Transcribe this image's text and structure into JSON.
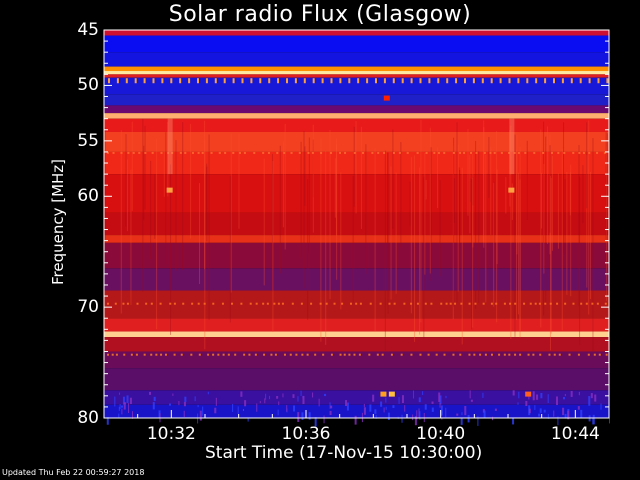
{
  "chart_data": {
    "type": "heatmap",
    "title": "Solar radio Flux (Glasgow)",
    "ylabel": "Frequency [MHz]",
    "xlabel": "Start Time (17-Nov-15 10:30:00)",
    "x_unit": "minutes after 10:30:00",
    "xlim": [
      0,
      15
    ],
    "ylim_mhz": [
      80,
      45
    ],
    "y_ticks": [
      {
        "value": 45,
        "label": "45"
      },
      {
        "value": 50,
        "label": "50"
      },
      {
        "value": 55,
        "label": "55"
      },
      {
        "value": 60,
        "label": "60"
      },
      {
        "value": 70,
        "label": "70"
      },
      {
        "value": 80,
        "label": "80"
      }
    ],
    "x_ticks": [
      {
        "value": 2,
        "label": "10:32"
      },
      {
        "value": 6,
        "label": "10:36"
      },
      {
        "value": 10,
        "label": "10:40"
      },
      {
        "value": 14,
        "label": "10:44"
      }
    ],
    "bands": [
      {
        "from": 45.0,
        "to": 45.5,
        "color": "#d01030"
      },
      {
        "from": 45.5,
        "to": 47.0,
        "color": "#0a0cf2"
      },
      {
        "from": 47.0,
        "to": 48.3,
        "color": "#1414e0"
      },
      {
        "from": 48.3,
        "to": 48.7,
        "color": "#ff9000"
      },
      {
        "from": 48.7,
        "to": 49.0,
        "color": "#ffe8a0"
      },
      {
        "from": 49.0,
        "to": 49.3,
        "color": "#e02020"
      },
      {
        "from": 49.3,
        "to": 50.8,
        "color": "#1818d8"
      },
      {
        "from": 50.8,
        "to": 51.8,
        "color": "#2020c8"
      },
      {
        "from": 51.8,
        "to": 52.5,
        "color": "#6a0a70"
      },
      {
        "from": 52.5,
        "to": 53.0,
        "color": "#ffb070"
      },
      {
        "from": 53.0,
        "to": 54.2,
        "color": "#e81a1a"
      },
      {
        "from": 54.2,
        "to": 56.0,
        "color": "#f24020"
      },
      {
        "from": 56.0,
        "to": 58.0,
        "color": "#f02818"
      },
      {
        "from": 58.0,
        "to": 61.5,
        "color": "#d81010"
      },
      {
        "from": 61.5,
        "to": 63.5,
        "color": "#c40c12"
      },
      {
        "from": 63.5,
        "to": 64.2,
        "color": "#e83018"
      },
      {
        "from": 64.2,
        "to": 66.5,
        "color": "#8a0a3a"
      },
      {
        "from": 66.5,
        "to": 68.5,
        "color": "#6a1060"
      },
      {
        "from": 68.5,
        "to": 71.0,
        "color": "#b41818"
      },
      {
        "from": 71.0,
        "to": 72.2,
        "color": "#e02020"
      },
      {
        "from": 72.2,
        "to": 72.7,
        "color": "#ffd090"
      },
      {
        "from": 72.7,
        "to": 74.0,
        "color": "#b01020"
      },
      {
        "from": 74.0,
        "to": 75.5,
        "color": "#6a0c5a"
      },
      {
        "from": 75.5,
        "to": 77.5,
        "color": "#5a0e68"
      },
      {
        "from": 77.5,
        "to": 78.8,
        "color": "#3a10a0"
      },
      {
        "from": 78.8,
        "to": 80.0,
        "color": "#1a14c8"
      }
    ],
    "features": [
      {
        "time": 8.4,
        "freq": 51.1,
        "color": "#ff2000"
      },
      {
        "time": 1.95,
        "freq": 59.4,
        "color": "#ffa040"
      },
      {
        "time": 12.1,
        "freq": 59.4,
        "color": "#ffa040"
      },
      {
        "time": 8.3,
        "freq": 77.8,
        "color": "#ffa020"
      },
      {
        "time": 8.55,
        "freq": 77.8,
        "color": "#ffc040"
      },
      {
        "time": 12.6,
        "freq": 77.8,
        "color": "#ff6020"
      }
    ]
  },
  "footer": "Updated Thu Feb 22 00:59:27 2018"
}
